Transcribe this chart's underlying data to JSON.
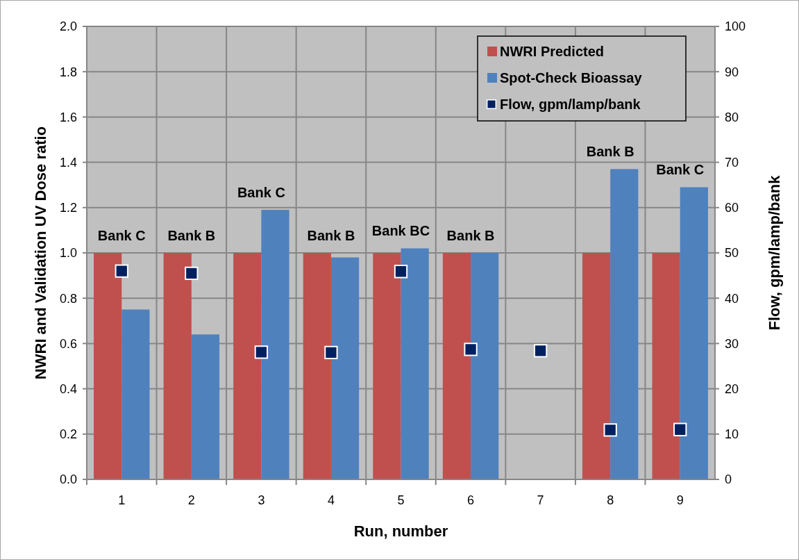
{
  "chart_data": {
    "type": "bar",
    "categories": [
      "1",
      "2",
      "3",
      "4",
      "5",
      "6",
      "7",
      "8",
      "9"
    ],
    "series": [
      {
        "name": "NWRI Predicted",
        "color": "#c0504d",
        "values": [
          1.0,
          1.0,
          1.0,
          1.0,
          1.0,
          1.0,
          null,
          1.0,
          1.0
        ]
      },
      {
        "name": "Spot-Check Bioassay",
        "color": "#4f81bd",
        "values": [
          0.75,
          0.64,
          1.19,
          0.98,
          1.02,
          1.0,
          null,
          1.37,
          1.29
        ]
      },
      {
        "name": "Flow, gpm/lamp/bank",
        "type": "scatter",
        "axis": "y2",
        "marker": "square",
        "color": "#002060",
        "x": [
          "1",
          "2",
          "3",
          "4",
          "5",
          "6",
          "7",
          "8",
          "9"
        ],
        "values": [
          46.0,
          45.5,
          28.1,
          28.0,
          45.9,
          28.7,
          28.4,
          10.9,
          11.0
        ]
      }
    ],
    "xlabel": "Run, number",
    "ylabel": "NWRI and Validation UV Dose ratio",
    "y2label": "Flow, gpm/lamp/bank",
    "ylim": [
      0,
      2
    ],
    "yticks": [
      {
        "value": 0,
        "label": "0.0"
      },
      0.2,
      0.4,
      0.6,
      0.8,
      {
        "value": 1,
        "label": "1.0"
      },
      1.2,
      1.4,
      1.6,
      1.8,
      {
        "value": 2,
        "label": "2.0"
      }
    ],
    "y2lim": [
      0,
      100
    ],
    "y2ticks": [
      0,
      10,
      20,
      30,
      40,
      50,
      60,
      70,
      80,
      90,
      100
    ],
    "annotations": [
      {
        "text": "Bank C",
        "x": "1",
        "y": 1.0
      },
      {
        "text": "Bank B",
        "x": "2",
        "y": 1.0
      },
      {
        "text": "Bank C",
        "x": "3",
        "y": 1.19
      },
      {
        "text": "Bank B",
        "x": "4",
        "y": 1.0
      },
      {
        "text": "Bank BC",
        "x": "5",
        "y": 1.02
      },
      {
        "text": "Bank B",
        "x": "6",
        "y": 1.0
      },
      {
        "text": "Bank B",
        "x": "8",
        "y": 1.37
      },
      {
        "text": "Bank C",
        "x": "9",
        "y": 1.29
      }
    ],
    "grid": true,
    "legend": "top right"
  }
}
